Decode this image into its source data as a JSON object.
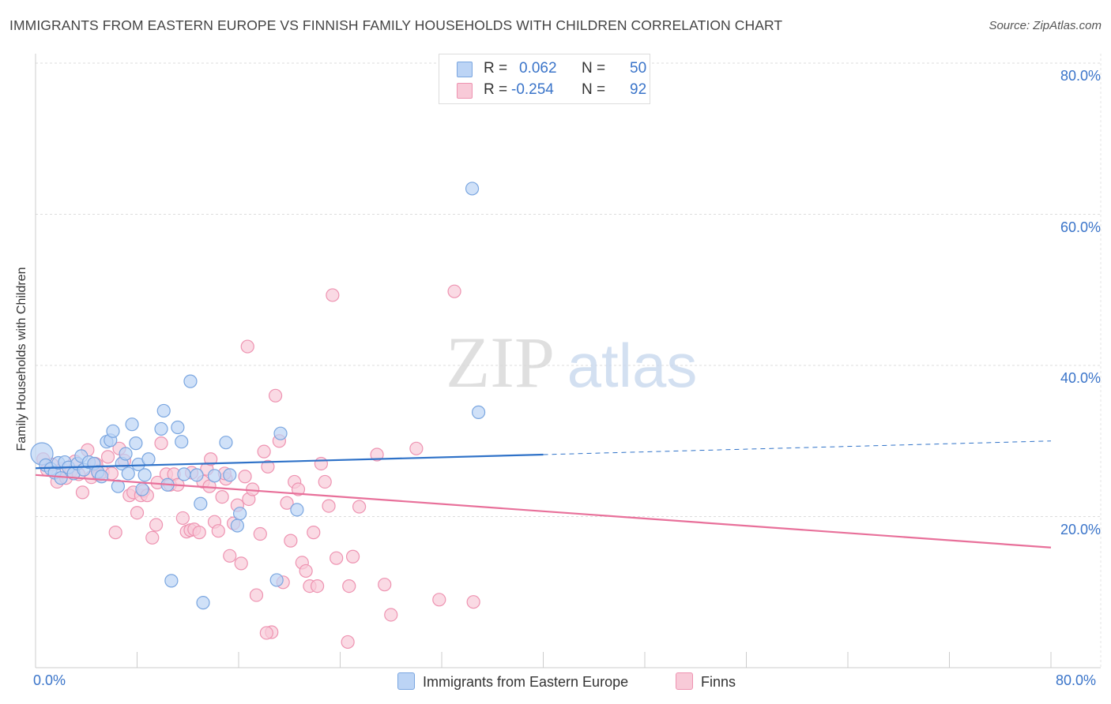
{
  "header": {
    "title": "IMMIGRANTS FROM EASTERN EUROPE VS FINNISH FAMILY HOUSEHOLDS WITH CHILDREN CORRELATION CHART",
    "source": "Source: ZipAtlas.com"
  },
  "legend": {
    "r_label": "R =",
    "n_label": "N =",
    "series": [
      {
        "name": "Immigrants from Eastern Europe",
        "r": "0.062",
        "n": "50"
      },
      {
        "name": "Finns",
        "r": "-0.254",
        "n": "92"
      }
    ]
  },
  "colors": {
    "blue_fill": "#bcd4f5",
    "blue_stroke": "#7aa6e0",
    "blue_line": "#2f72c8",
    "pink_fill": "#f8cad8",
    "pink_stroke": "#ee93b1",
    "pink_line": "#e8709a",
    "grid": "#dddddd",
    "axis_text": "#3a74c9"
  },
  "watermark": {
    "zip": "ZIP",
    "atlas": "atlas"
  },
  "chart_data": {
    "type": "scatter",
    "title": "IMMIGRANTS FROM EASTERN EUROPE VS FINNISH FAMILY HOUSEHOLDS WITH CHILDREN CORRELATION CHART",
    "xlabel": "",
    "ylabel": "Family Households with Children",
    "xlim": [
      0,
      80
    ],
    "ylim": [
      0,
      80
    ],
    "x_tick_labels": [
      "0.0%",
      "80.0%"
    ],
    "y_tick_labels": [
      "20.0%",
      "40.0%",
      "60.0%",
      "80.0%"
    ],
    "y_ticks": [
      20,
      40,
      60,
      80
    ],
    "series": [
      {
        "name": "Immigrants from Eastern Europe",
        "color": "#7aa6e0",
        "points": [
          [
            0.5,
            28.3
          ],
          [
            0.8,
            26.8
          ],
          [
            1.2,
            26.3
          ],
          [
            1.5,
            25.8
          ],
          [
            1.8,
            27.1
          ],
          [
            2.0,
            25.1
          ],
          [
            2.3,
            27.2
          ],
          [
            2.6,
            26.5
          ],
          [
            3.0,
            25.7
          ],
          [
            3.3,
            27.0
          ],
          [
            3.6,
            28.0
          ],
          [
            3.8,
            26.2
          ],
          [
            4.2,
            27.2
          ],
          [
            4.6,
            27.0
          ],
          [
            4.9,
            25.9
          ],
          [
            5.2,
            25.3
          ],
          [
            5.6,
            29.9
          ],
          [
            5.9,
            30.1
          ],
          [
            6.1,
            31.3
          ],
          [
            6.5,
            24.0
          ],
          [
            6.8,
            27.0
          ],
          [
            7.1,
            28.3
          ],
          [
            7.3,
            25.7
          ],
          [
            7.6,
            32.2
          ],
          [
            7.9,
            29.7
          ],
          [
            8.1,
            26.9
          ],
          [
            8.4,
            23.6
          ],
          [
            8.6,
            25.5
          ],
          [
            8.9,
            27.6
          ],
          [
            9.9,
            31.6
          ],
          [
            10.1,
            34.0
          ],
          [
            10.4,
            24.2
          ],
          [
            10.7,
            11.5
          ],
          [
            11.2,
            31.8
          ],
          [
            11.5,
            29.9
          ],
          [
            11.7,
            25.6
          ],
          [
            12.2,
            37.9
          ],
          [
            12.7,
            25.5
          ],
          [
            13.0,
            21.7
          ],
          [
            13.2,
            8.6
          ],
          [
            14.1,
            25.4
          ],
          [
            15.0,
            29.8
          ],
          [
            15.3,
            25.5
          ],
          [
            16.1,
            20.4
          ],
          [
            15.9,
            18.8
          ],
          [
            19.0,
            11.6
          ],
          [
            19.3,
            31.0
          ],
          [
            20.6,
            20.9
          ],
          [
            34.4,
            63.4
          ],
          [
            34.9,
            33.8
          ]
        ]
      },
      {
        "name": "Finns",
        "color": "#ee93b1",
        "points": [
          [
            0.6,
            27.6
          ],
          [
            0.9,
            26.2
          ],
          [
            1.3,
            26.9
          ],
          [
            1.7,
            24.6
          ],
          [
            2.1,
            26.3
          ],
          [
            2.4,
            25.1
          ],
          [
            2.8,
            26.0
          ],
          [
            3.1,
            27.3
          ],
          [
            3.4,
            25.6
          ],
          [
            3.7,
            23.2
          ],
          [
            4.1,
            28.8
          ],
          [
            4.4,
            25.2
          ],
          [
            4.7,
            27.0
          ],
          [
            5.0,
            25.5
          ],
          [
            5.3,
            25.9
          ],
          [
            5.7,
            27.9
          ],
          [
            6.0,
            25.7
          ],
          [
            6.3,
            17.9
          ],
          [
            6.6,
            29.0
          ],
          [
            7.0,
            27.4
          ],
          [
            7.4,
            22.8
          ],
          [
            7.7,
            23.2
          ],
          [
            8.0,
            20.5
          ],
          [
            8.3,
            22.8
          ],
          [
            8.5,
            23.4
          ],
          [
            8.8,
            22.8
          ],
          [
            9.2,
            17.2
          ],
          [
            9.6,
            24.5
          ],
          [
            9.9,
            29.7
          ],
          [
            10.3,
            25.6
          ],
          [
            10.6,
            24.2
          ],
          [
            10.9,
            25.6
          ],
          [
            11.2,
            24.2
          ],
          [
            11.6,
            19.8
          ],
          [
            11.9,
            18.0
          ],
          [
            12.2,
            18.2
          ],
          [
            12.5,
            18.3
          ],
          [
            12.9,
            17.9
          ],
          [
            13.2,
            24.6
          ],
          [
            13.5,
            26.3
          ],
          [
            13.8,
            27.6
          ],
          [
            14.1,
            19.3
          ],
          [
            14.4,
            18.1
          ],
          [
            14.7,
            22.6
          ],
          [
            15.0,
            25.0
          ],
          [
            15.3,
            14.8
          ],
          [
            15.6,
            19.1
          ],
          [
            15.9,
            21.5
          ],
          [
            16.2,
            13.8
          ],
          [
            16.5,
            25.3
          ],
          [
            16.8,
            22.3
          ],
          [
            17.1,
            23.6
          ],
          [
            17.4,
            9.6
          ],
          [
            17.7,
            17.7
          ],
          [
            18.0,
            28.6
          ],
          [
            18.3,
            26.6
          ],
          [
            18.6,
            4.7
          ],
          [
            18.9,
            36.0
          ],
          [
            19.2,
            30.0
          ],
          [
            19.5,
            11.3
          ],
          [
            19.8,
            21.8
          ],
          [
            20.1,
            16.8
          ],
          [
            20.4,
            24.6
          ],
          [
            20.7,
            23.6
          ],
          [
            21.0,
            13.9
          ],
          [
            21.3,
            12.8
          ],
          [
            21.6,
            10.8
          ],
          [
            21.9,
            17.9
          ],
          [
            22.2,
            10.8
          ],
          [
            22.5,
            27.0
          ],
          [
            22.8,
            24.6
          ],
          [
            23.1,
            21.4
          ],
          [
            23.4,
            49.3
          ],
          [
            23.7,
            14.5
          ],
          [
            24.6,
            3.4
          ],
          [
            25.0,
            14.7
          ],
          [
            25.5,
            21.3
          ],
          [
            26.9,
            28.2
          ],
          [
            27.5,
            11.0
          ],
          [
            28.0,
            7.0
          ],
          [
            30.0,
            29.0
          ],
          [
            31.8,
            9.0
          ],
          [
            33.0,
            49.8
          ],
          [
            34.5,
            8.7
          ],
          [
            12.3,
            25.8
          ],
          [
            13.7,
            24.0
          ],
          [
            9.5,
            18.9
          ],
          [
            16.7,
            42.5
          ],
          [
            14.9,
            25.7
          ],
          [
            4.8,
            26.9
          ],
          [
            18.2,
            4.6
          ],
          [
            24.7,
            10.8
          ]
        ]
      }
    ],
    "trendlines": [
      {
        "name": "Immigrants from Eastern Europe",
        "solid_x": [
          0,
          40
        ],
        "solid_y": [
          26.4,
          28.2
        ],
        "dashed_x": [
          40,
          80
        ],
        "dashed_y": [
          28.2,
          30.0
        ]
      },
      {
        "name": "Finns",
        "solid_x": [
          0,
          80
        ],
        "solid_y": [
          25.5,
          15.9
        ]
      }
    ]
  }
}
